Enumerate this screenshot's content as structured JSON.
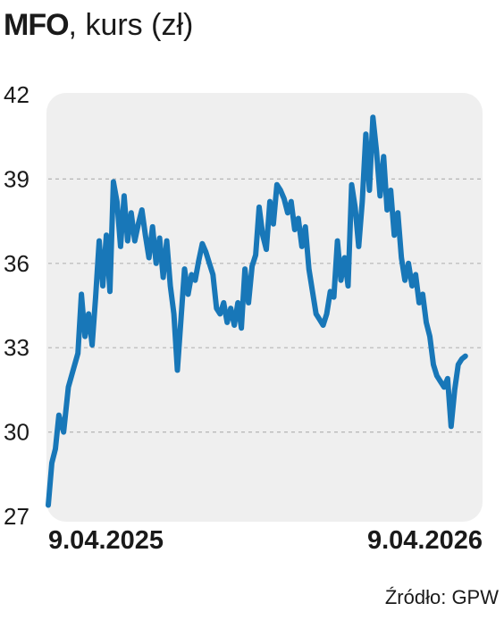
{
  "title": {
    "ticker": "MFO",
    "rest": ", kurs (zł)"
  },
  "source": "Źródło: GPW",
  "colors": {
    "line": "#1877b8",
    "panel": "#efefef",
    "grid": "#b5b5b5",
    "text": "#1a1a1a"
  },
  "chart_data": {
    "type": "line",
    "title": "MFO, kurs (zł)",
    "xlabel": "",
    "ylabel": "",
    "ylim": [
      27,
      42
    ],
    "yticks": [
      27,
      30,
      33,
      36,
      39,
      42
    ],
    "ytick_labels": [
      "27",
      "30",
      "33",
      "36",
      "39",
      "42"
    ],
    "xlim": [
      "2025-04-09",
      "2026-04-09"
    ],
    "xtick_labels": [
      {
        "date": "2025-04-09",
        "label": "9.04.2025"
      },
      {
        "date": "2026-04-09",
        "label": "9.04.2026"
      }
    ],
    "grid": true,
    "series": [
      {
        "values": [
          [
            "2025-04-09",
            27.4
          ],
          [
            "2025-04-12",
            28.9
          ],
          [
            "2025-04-15",
            29.4
          ],
          [
            "2025-04-18",
            30.6
          ],
          [
            "2025-04-22",
            30.0
          ],
          [
            "2025-04-26",
            31.6
          ],
          [
            "2025-04-30",
            32.2
          ],
          [
            "2025-05-04",
            32.8
          ],
          [
            "2025-05-07",
            34.9
          ],
          [
            "2025-05-10",
            33.4
          ],
          [
            "2025-05-13",
            34.2
          ],
          [
            "2025-05-16",
            33.1
          ],
          [
            "2025-05-19",
            34.8
          ],
          [
            "2025-05-22",
            36.8
          ],
          [
            "2025-05-25",
            35.2
          ],
          [
            "2025-05-28",
            37.0
          ],
          [
            "2025-05-31",
            35.0
          ],
          [
            "2025-06-03",
            38.9
          ],
          [
            "2025-06-06",
            38.2
          ],
          [
            "2025-06-09",
            36.6
          ],
          [
            "2025-06-12",
            38.4
          ],
          [
            "2025-06-15",
            36.8
          ],
          [
            "2025-06-18",
            37.8
          ],
          [
            "2025-06-21",
            36.8
          ],
          [
            "2025-06-24",
            37.4
          ],
          [
            "2025-06-27",
            37.9
          ],
          [
            "2025-06-30",
            37.0
          ],
          [
            "2025-07-03",
            36.2
          ],
          [
            "2025-07-06",
            37.3
          ],
          [
            "2025-07-09",
            36.0
          ],
          [
            "2025-07-12",
            36.9
          ],
          [
            "2025-07-15",
            35.5
          ],
          [
            "2025-07-18",
            36.8
          ],
          [
            "2025-07-21",
            35.2
          ],
          [
            "2025-07-24",
            34.2
          ],
          [
            "2025-07-27",
            32.2
          ],
          [
            "2025-07-30",
            34.0
          ],
          [
            "2025-08-02",
            35.8
          ],
          [
            "2025-08-05",
            34.9
          ],
          [
            "2025-08-08",
            35.6
          ],
          [
            "2025-08-11",
            35.4
          ],
          [
            "2025-08-14",
            36.1
          ],
          [
            "2025-08-17",
            36.7
          ],
          [
            "2025-08-20",
            36.4
          ],
          [
            "2025-08-23",
            36.0
          ],
          [
            "2025-08-26",
            35.6
          ],
          [
            "2025-08-29",
            34.4
          ],
          [
            "2025-09-01",
            34.2
          ],
          [
            "2025-09-04",
            34.6
          ],
          [
            "2025-09-07",
            33.9
          ],
          [
            "2025-09-10",
            34.4
          ],
          [
            "2025-09-13",
            33.8
          ],
          [
            "2025-09-16",
            34.6
          ],
          [
            "2025-09-19",
            33.7
          ],
          [
            "2025-09-22",
            35.8
          ],
          [
            "2025-09-25",
            34.6
          ],
          [
            "2025-09-28",
            35.9
          ],
          [
            "2025-10-01",
            36.3
          ],
          [
            "2025-10-04",
            38.0
          ],
          [
            "2025-10-07",
            37.0
          ],
          [
            "2025-10-10",
            36.5
          ],
          [
            "2025-10-13",
            38.2
          ],
          [
            "2025-10-16",
            37.4
          ],
          [
            "2025-10-19",
            38.8
          ],
          [
            "2025-10-22",
            38.6
          ],
          [
            "2025-10-25",
            38.3
          ],
          [
            "2025-10-28",
            37.8
          ],
          [
            "2025-10-31",
            38.2
          ],
          [
            "2025-11-03",
            37.2
          ],
          [
            "2025-11-06",
            37.6
          ],
          [
            "2025-11-09",
            36.6
          ],
          [
            "2025-11-12",
            37.3
          ],
          [
            "2025-11-15",
            35.8
          ],
          [
            "2025-11-18",
            35.0
          ],
          [
            "2025-11-21",
            34.2
          ],
          [
            "2025-11-24",
            34.0
          ],
          [
            "2025-11-27",
            33.8
          ],
          [
            "2025-11-30",
            34.2
          ],
          [
            "2025-12-03",
            35.0
          ],
          [
            "2025-12-06",
            34.8
          ],
          [
            "2025-12-09",
            36.8
          ],
          [
            "2025-12-12",
            35.4
          ],
          [
            "2025-12-15",
            36.2
          ],
          [
            "2025-12-18",
            35.2
          ],
          [
            "2025-12-21",
            38.8
          ],
          [
            "2025-12-24",
            38.0
          ],
          [
            "2025-12-27",
            36.6
          ],
          [
            "2025-12-30",
            38.2
          ],
          [
            "2026-01-02",
            40.6
          ],
          [
            "2026-01-05",
            38.6
          ],
          [
            "2026-01-08",
            41.2
          ],
          [
            "2026-01-11",
            40.0
          ],
          [
            "2026-01-14",
            38.4
          ],
          [
            "2026-01-17",
            39.8
          ],
          [
            "2026-01-20",
            37.9
          ],
          [
            "2026-01-23",
            38.6
          ],
          [
            "2026-01-26",
            37.0
          ],
          [
            "2026-01-29",
            37.8
          ],
          [
            "2026-02-01",
            36.2
          ],
          [
            "2026-02-04",
            35.4
          ],
          [
            "2026-02-07",
            36.0
          ],
          [
            "2026-02-10",
            35.2
          ],
          [
            "2026-02-13",
            35.6
          ],
          [
            "2026-02-16",
            34.6
          ],
          [
            "2026-02-19",
            34.9
          ],
          [
            "2026-02-22",
            33.9
          ],
          [
            "2026-02-25",
            33.4
          ],
          [
            "2026-02-28",
            32.4
          ],
          [
            "2026-03-03",
            32.0
          ],
          [
            "2026-03-06",
            31.8
          ],
          [
            "2026-03-09",
            31.6
          ],
          [
            "2026-03-12",
            31.9
          ],
          [
            "2026-03-15",
            30.2
          ],
          [
            "2026-03-18",
            31.5
          ],
          [
            "2026-03-21",
            32.4
          ],
          [
            "2026-03-24",
            32.6
          ],
          [
            "2026-03-27",
            32.7
          ]
        ]
      }
    ]
  }
}
